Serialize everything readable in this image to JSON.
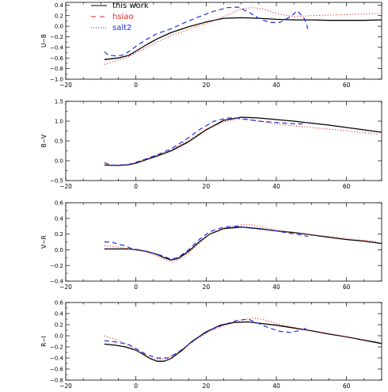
{
  "legend": {
    "placement": "top-left",
    "entries": [
      {
        "label": "this work",
        "color": "#000000",
        "dash": "solid"
      },
      {
        "label": "hsiao",
        "color": "#e8261c",
        "dash": "dotted"
      },
      {
        "label": "salt2",
        "color": "#1f2fe0",
        "dash": "dashed"
      }
    ]
  },
  "chart_data": [
    {
      "type": "line",
      "ylabel": "U−B",
      "xlim": [
        -20,
        70
      ],
      "ylim": [
        -1.0,
        0.45
      ],
      "xticks": [
        -20,
        0,
        20,
        40,
        60
      ],
      "yticks": [
        -1.0,
        -0.8,
        -0.6,
        -0.4,
        -0.2,
        0.0,
        0.2,
        0.4
      ],
      "ytick_labels": [
        "−1.0",
        "−0.8",
        "−0.6",
        "−0.4",
        "−0.2",
        "0.0",
        "0.2",
        "0.4"
      ],
      "series": [
        {
          "name": "this work",
          "color": "#000000",
          "dash": "solid",
          "x": [
            -9,
            -5,
            -2,
            0,
            3,
            6,
            10,
            15,
            20,
            25,
            30,
            35,
            40,
            45,
            50,
            55,
            60,
            65,
            70
          ],
          "y": [
            -0.63,
            -0.6,
            -0.55,
            -0.47,
            -0.35,
            -0.24,
            -0.12,
            -0.01,
            0.08,
            0.15,
            0.16,
            0.15,
            0.13,
            0.12,
            0.12,
            0.11,
            0.11,
            0.11,
            0.12
          ]
        },
        {
          "name": "hsiao",
          "color": "#e8261c",
          "dash": "dotted",
          "x": [
            -9,
            -5,
            -2,
            0,
            3,
            6,
            10,
            15,
            20,
            25,
            30,
            33,
            36,
            40,
            45,
            50,
            55,
            60,
            65,
            69
          ],
          "y": [
            -0.72,
            -0.64,
            -0.57,
            -0.5,
            -0.4,
            -0.3,
            -0.18,
            -0.06,
            0.05,
            0.18,
            0.33,
            0.35,
            0.33,
            0.24,
            0.18,
            0.2,
            0.21,
            0.22,
            0.23,
            0.24
          ]
        },
        {
          "name": "salt2",
          "color": "#1f2fe0",
          "dash": "dashed",
          "x": [
            -9,
            -8,
            -6,
            -4,
            -2,
            0,
            3,
            6,
            10,
            14,
            18,
            22,
            26,
            29,
            32,
            35,
            38,
            41,
            44,
            46,
            48,
            49
          ],
          "y": [
            -0.48,
            -0.54,
            -0.56,
            -0.55,
            -0.48,
            -0.38,
            -0.25,
            -0.14,
            -0.05,
            0.07,
            0.18,
            0.28,
            0.35,
            0.36,
            0.27,
            0.15,
            0.07,
            0.07,
            0.18,
            0.29,
            0.14,
            -0.05
          ]
        }
      ]
    },
    {
      "type": "line",
      "ylabel": "B−V",
      "xlim": [
        -20,
        70
      ],
      "ylim": [
        -0.5,
        1.5
      ],
      "xticks": [
        -20,
        0,
        20,
        40,
        60
      ],
      "yticks": [
        -0.5,
        0.0,
        0.5,
        1.0,
        1.5
      ],
      "ytick_labels": [
        "−0.5",
        "0.0",
        "0.5",
        "1.0",
        "1.5"
      ],
      "series": [
        {
          "name": "this work",
          "color": "#000000",
          "dash": "solid",
          "x": [
            -9,
            -5,
            -2,
            0,
            3,
            6,
            10,
            15,
            20,
            25,
            30,
            35,
            40,
            45,
            50,
            55,
            60,
            65,
            70
          ],
          "y": [
            -0.11,
            -0.12,
            -0.1,
            -0.06,
            0.03,
            0.12,
            0.25,
            0.48,
            0.78,
            1.02,
            1.1,
            1.08,
            1.04,
            1.0,
            0.95,
            0.9,
            0.84,
            0.78,
            0.72
          ]
        },
        {
          "name": "hsiao",
          "color": "#e8261c",
          "dash": "dotted",
          "x": [
            -9,
            -5,
            -2,
            0,
            3,
            6,
            10,
            15,
            20,
            25,
            29,
            33,
            37,
            40,
            45,
            50,
            55,
            60,
            65,
            69
          ],
          "y": [
            -0.1,
            -0.12,
            -0.1,
            -0.05,
            0.04,
            0.14,
            0.27,
            0.52,
            0.8,
            0.98,
            1.05,
            1.03,
            0.97,
            0.93,
            0.88,
            0.84,
            0.8,
            0.76,
            0.71,
            0.67
          ]
        },
        {
          "name": "salt2",
          "color": "#1f2fe0",
          "dash": "dashed",
          "x": [
            -9,
            -7,
            -5,
            -2,
            0,
            3,
            6,
            10,
            14,
            18,
            22,
            26,
            29,
            32,
            35,
            38,
            41,
            44,
            47,
            49
          ],
          "y": [
            -0.05,
            -0.11,
            -0.11,
            -0.09,
            -0.04,
            0.05,
            0.15,
            0.3,
            0.52,
            0.78,
            0.99,
            1.08,
            1.08,
            1.04,
            1.0,
            0.98,
            0.96,
            0.94,
            0.93,
            0.97
          ]
        }
      ]
    },
    {
      "type": "line",
      "ylabel": "V−R",
      "xlim": [
        -20,
        70
      ],
      "ylim": [
        -0.4,
        0.6
      ],
      "xticks": [
        -20,
        0,
        20,
        40,
        60
      ],
      "yticks": [
        -0.4,
        -0.2,
        0.0,
        0.2,
        0.4,
        0.6
      ],
      "ytick_labels": [
        "−0.4",
        "−0.2",
        "0.0",
        "0.2",
        "0.4",
        "0.6"
      ],
      "series": [
        {
          "name": "this work",
          "color": "#000000",
          "dash": "solid",
          "x": [
            -9,
            -5,
            -2,
            0,
            3,
            6,
            8,
            10,
            12,
            15,
            18,
            21,
            25,
            30,
            35,
            40,
            45,
            50,
            55,
            60,
            65,
            70
          ],
          "y": [
            0.01,
            0.01,
            0.01,
            0.0,
            -0.02,
            -0.06,
            -0.1,
            -0.13,
            -0.11,
            -0.02,
            0.1,
            0.2,
            0.27,
            0.29,
            0.27,
            0.24,
            0.22,
            0.19,
            0.16,
            0.13,
            0.11,
            0.08
          ]
        },
        {
          "name": "hsiao",
          "color": "#e8261c",
          "dash": "dotted",
          "x": [
            -9,
            -6,
            -3,
            0,
            3,
            6,
            8,
            10,
            12,
            15,
            18,
            21,
            25,
            30,
            33,
            36,
            40,
            45,
            50,
            55,
            60,
            65,
            69
          ],
          "y": [
            0.05,
            0.04,
            0.02,
            0.0,
            -0.03,
            -0.08,
            -0.12,
            -0.15,
            -0.13,
            -0.04,
            0.08,
            0.2,
            0.28,
            0.32,
            0.32,
            0.29,
            0.25,
            0.22,
            0.19,
            0.17,
            0.14,
            0.12,
            0.1
          ]
        },
        {
          "name": "salt2",
          "color": "#1f2fe0",
          "dash": "dashed",
          "x": [
            -9,
            -7,
            -5,
            -3,
            -1,
            1,
            4,
            7,
            10,
            12,
            15,
            18,
            21,
            25,
            29,
            32,
            36,
            40,
            44,
            47,
            49
          ],
          "y": [
            0.1,
            0.1,
            0.07,
            0.05,
            0.01,
            0.0,
            -0.03,
            -0.07,
            -0.12,
            -0.1,
            0.0,
            0.13,
            0.23,
            0.29,
            0.3,
            0.28,
            0.26,
            0.24,
            0.21,
            0.19,
            0.17
          ]
        }
      ]
    },
    {
      "type": "line",
      "ylabel": "R−I",
      "xlim": [
        -20,
        70
      ],
      "ylim": [
        -0.8,
        0.6
      ],
      "xticks": [
        -20,
        0,
        20,
        40,
        60
      ],
      "yticks": [
        -0.8,
        -0.6,
        -0.4,
        -0.2,
        0.0,
        0.2,
        0.4,
        0.6
      ],
      "ytick_labels": [
        "−0.8",
        "−0.6",
        "−0.4",
        "−0.2",
        "0.0",
        "0.2",
        "0.4",
        "0.6"
      ],
      "series": [
        {
          "name": "this work",
          "color": "#000000",
          "dash": "solid",
          "x": [
            -9,
            -6,
            -3,
            0,
            2,
            4,
            6,
            8,
            10,
            13,
            16,
            20,
            24,
            28,
            32,
            36,
            40,
            45,
            50,
            55,
            60,
            65,
            70
          ],
          "y": [
            -0.15,
            -0.17,
            -0.2,
            -0.26,
            -0.33,
            -0.41,
            -0.46,
            -0.46,
            -0.41,
            -0.27,
            -0.1,
            0.07,
            0.19,
            0.24,
            0.25,
            0.22,
            0.19,
            0.14,
            0.09,
            0.03,
            -0.02,
            -0.08,
            -0.14
          ]
        },
        {
          "name": "hsiao",
          "color": "#e8261c",
          "dash": "dotted",
          "x": [
            -9,
            -6,
            -3,
            0,
            3,
            6,
            9,
            12,
            15,
            18,
            21,
            25,
            29,
            33,
            36,
            40,
            45,
            50,
            55,
            60,
            65,
            69
          ],
          "y": [
            0.0,
            -0.06,
            -0.14,
            -0.26,
            -0.38,
            -0.43,
            -0.4,
            -0.3,
            -0.15,
            -0.03,
            0.08,
            0.18,
            0.26,
            0.32,
            0.3,
            0.22,
            0.15,
            0.09,
            0.04,
            -0.02,
            -0.07,
            -0.11
          ]
        },
        {
          "name": "salt2",
          "color": "#1f2fe0",
          "dash": "dashed",
          "x": [
            -9,
            -7,
            -5,
            -2,
            0,
            3,
            6,
            9,
            12,
            15,
            18,
            21,
            25,
            29,
            32,
            35,
            38,
            41,
            44,
            47,
            49
          ],
          "y": [
            -0.09,
            -0.1,
            -0.12,
            -0.16,
            -0.23,
            -0.34,
            -0.4,
            -0.4,
            -0.3,
            -0.16,
            -0.02,
            0.1,
            0.2,
            0.28,
            0.3,
            0.22,
            0.14,
            0.08,
            0.06,
            0.1,
            0.15
          ]
        }
      ]
    }
  ]
}
